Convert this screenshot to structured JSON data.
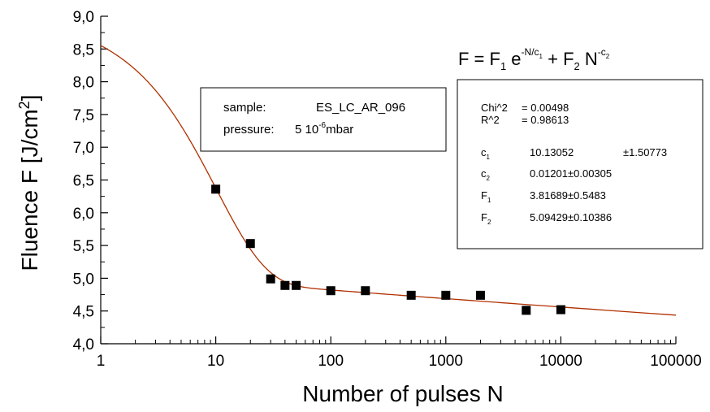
{
  "chart_data": {
    "type": "scatter",
    "xlabel": "Number of pulses N",
    "ylabel_main": "Fluence F [J/cm",
    "ylabel_sup": "2",
    "ylabel_close": "]",
    "x_scale": "log",
    "xlim": [
      1,
      100000
    ],
    "ylim": [
      4.0,
      9.0
    ],
    "grid": false,
    "x_ticks": [
      1,
      10,
      100,
      1000,
      10000,
      100000
    ],
    "x_tick_labels": [
      "1",
      "10",
      "100",
      "1000",
      "10000",
      "100000"
    ],
    "y_ticks": [
      4.0,
      4.5,
      5.0,
      5.5,
      6.0,
      6.5,
      7.0,
      7.5,
      8.0,
      8.5,
      9.0
    ],
    "y_tick_labels": [
      "4,0",
      "4,5",
      "5,0",
      "5,5",
      "6,0",
      "6,5",
      "7,0",
      "7,5",
      "8,0",
      "8,5",
      "9,0"
    ],
    "points": {
      "x": [
        10,
        20,
        30,
        40,
        50,
        100,
        200,
        500,
        1000,
        2000,
        5000,
        10000
      ],
      "y": [
        6.36,
        5.53,
        4.99,
        4.89,
        4.89,
        4.81,
        4.81,
        4.74,
        4.74,
        4.74,
        4.51,
        4.52
      ]
    },
    "fit": {
      "c1": 10.13052,
      "c2": 0.01201,
      "F1": 3.81689,
      "F2": 5.09429,
      "color": "#b03000"
    },
    "marker_color": "#000000"
  },
  "formula": {
    "lhs": "F = F",
    "sub1": "1",
    "e": " e",
    "exp1": "-N/c",
    "exp1_sub": "1",
    "plus": " + F",
    "sub2": "2",
    "n": " N",
    "exp2": "-c",
    "exp2_sub": "2"
  },
  "sample_box": {
    "sample_label": "sample:",
    "sample_value": "ES_LC_AR_096",
    "pressure_label": "pressure:",
    "pressure_value_a": "5 10",
    "pressure_exp": "-6",
    "pressure_unit": "mbar"
  },
  "fit_box": {
    "chi_label": "Chi^2",
    "chi_value": "= 0.00498",
    "r_label": "R^2",
    "r_value": "= 0.98613",
    "c1_label": "c",
    "c1_sub": "1",
    "c1_value": "10.13052",
    "c1_error": "±1.50773",
    "c2_label": "c",
    "c2_sub": "2",
    "c2_value": "0.01201±0.00305",
    "F1_label": "F",
    "F1_sub": "1",
    "F1_value": "3.81689±0.5483",
    "F2_label": "F",
    "F2_sub": "2",
    "F2_value": "5.09429±0.10386"
  }
}
